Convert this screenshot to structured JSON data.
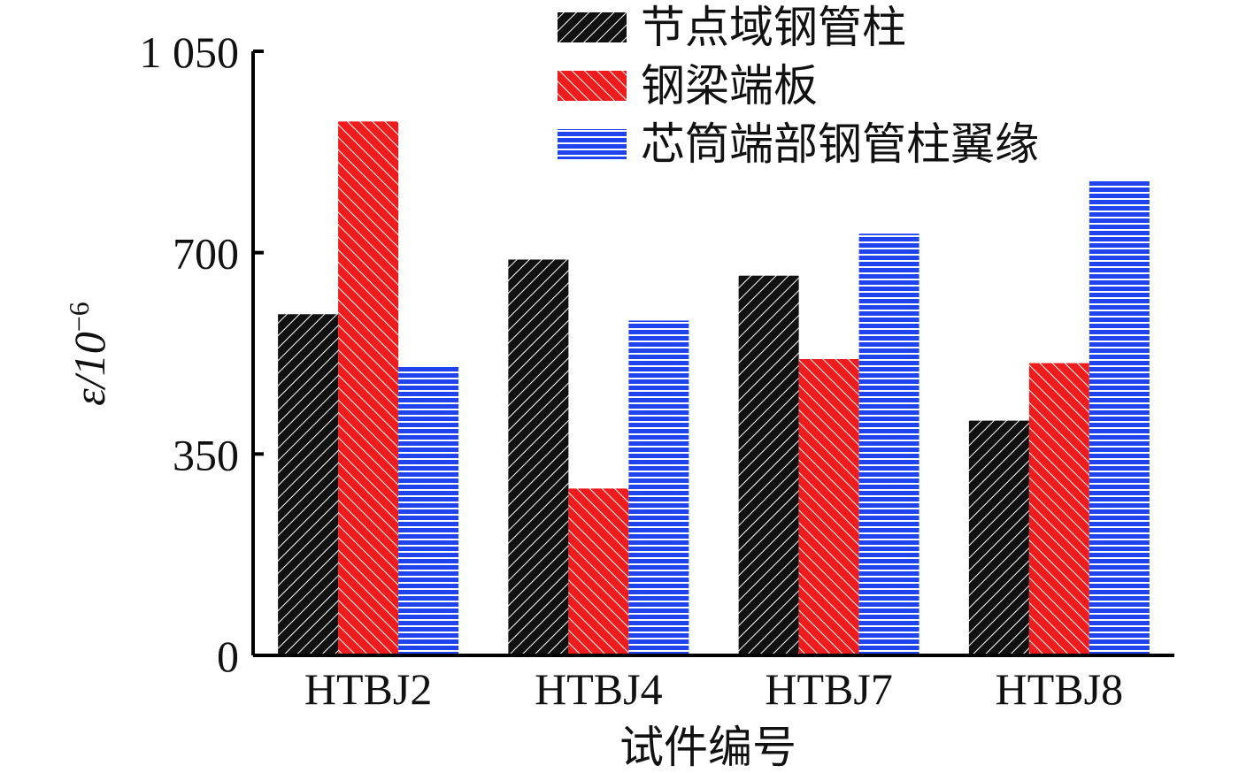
{
  "chart_data": {
    "type": "bar",
    "categories": [
      "HTBJ2",
      "HTBJ4",
      "HTBJ7",
      "HTBJ8"
    ],
    "series": [
      {
        "name": "节点域钢管柱",
        "values": [
          593,
          688,
          660,
          408
        ],
        "color": "#111111",
        "pattern": "diagonal-hatch"
      },
      {
        "name": "钢梁端板",
        "values": [
          928,
          290,
          515,
          508
        ],
        "color": "#ee1c1c",
        "pattern": "diagonal-hatch"
      },
      {
        "name": "芯筒端部钢管柱翼缘",
        "values": [
          502,
          582,
          733,
          827
        ],
        "color": "#1f44ee",
        "pattern": "horizontal-lines"
      }
    ],
    "title": "",
    "xlabel": "试件编号",
    "ylabel_main": "ε/10",
    "ylabel_sup": "−6",
    "ylim": [
      0,
      1050
    ],
    "yticks": [
      0,
      350,
      700,
      1050
    ],
    "ytick_labels": [
      "0",
      "350",
      "700",
      "1 050"
    ],
    "legend_position": "top-right",
    "grid": false
  }
}
